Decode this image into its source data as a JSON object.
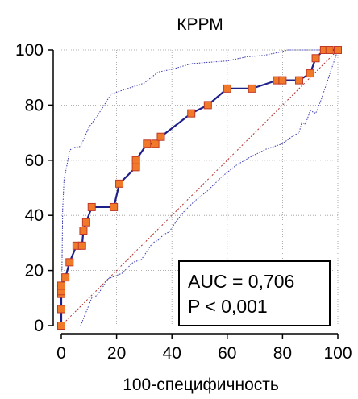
{
  "chart_data": {
    "type": "line",
    "title": "КРРМ",
    "xlabel": "100-специфичность",
    "ylabel": "",
    "xlim": [
      0,
      100
    ],
    "ylim": [
      0,
      100
    ],
    "x_ticks": [
      0,
      20,
      40,
      60,
      80,
      100
    ],
    "y_ticks": [
      0,
      20,
      40,
      60,
      80,
      100
    ],
    "grid": true,
    "annotations": [
      "AUC = 0,706",
      "P < 0,001"
    ],
    "colors": {
      "roc_line": "#1f1f8a",
      "marker_fill": "#f07a2a",
      "marker_edge": "#c0392b",
      "ci_line": "#3a3ab0",
      "diagonal": "#b03030",
      "grid": "#9a9a9a"
    },
    "series": [
      {
        "type": "roc",
        "x": [
          0,
          0,
          0,
          0,
          0,
          1.5,
          3,
          5.5,
          7.5,
          8,
          9,
          11,
          19,
          21,
          27,
          27,
          31,
          34,
          36,
          47,
          53,
          60,
          69,
          78,
          80,
          86,
          90,
          92,
          95,
          97,
          100
        ],
        "y": [
          0,
          6,
          11.5,
          12.5,
          14.5,
          17.5,
          23,
          29,
          29,
          34.5,
          37.5,
          43,
          43,
          51.5,
          57.5,
          60,
          66,
          66,
          68.5,
          77,
          80,
          86,
          86,
          89,
          89,
          89,
          91.5,
          97,
          100,
          100,
          100
        ]
      },
      {
        "type": "ci_upper",
        "x": [
          0,
          0.5,
          1,
          2,
          3,
          4,
          7,
          10,
          13,
          18,
          21,
          24,
          27,
          30,
          35,
          40,
          47,
          53,
          60,
          67,
          73,
          78,
          82,
          86,
          92,
          100
        ],
        "y": [
          0,
          42,
          53,
          58,
          63.5,
          64.5,
          65,
          72,
          76,
          84,
          85,
          86,
          87,
          88,
          92,
          93,
          95,
          95.5,
          96,
          97.5,
          98,
          99,
          100,
          100,
          100,
          100
        ]
      },
      {
        "type": "ci_lower",
        "x": [
          7,
          9,
          11,
          13,
          17,
          22,
          26,
          29,
          33,
          35,
          37,
          39,
          41,
          44,
          48,
          53,
          58,
          63,
          68,
          74,
          80,
          84,
          86,
          87,
          88,
          89,
          90,
          92,
          94,
          100
        ],
        "y": [
          0,
          5,
          10,
          11,
          17,
          19,
          23,
          24,
          30,
          31,
          33,
          34,
          37,
          41,
          45,
          49,
          54,
          58,
          61,
          64,
          66,
          69,
          70,
          74,
          73,
          75,
          78,
          77,
          82,
          100
        ]
      }
    ]
  }
}
